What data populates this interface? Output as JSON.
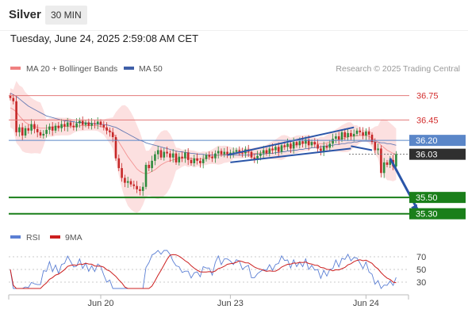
{
  "header": {
    "title": "Silver",
    "interval": "30 MIN"
  },
  "timestamp": "Tuesday, June 24, 2025 2:59:08 AM CET",
  "legend": {
    "bollinger_label": "MA 20 + Bollinger Bands",
    "ma50_label": "MA 50",
    "copyright": "Research © 2025 Trading Central",
    "rsi_label": "RSI",
    "rsi_ma_label": "9MA"
  },
  "colors": {
    "bollinger": "#f08080",
    "band_fill": "#fbdada",
    "ma50": "#3f5fa8",
    "up": "#2e8b3e",
    "down": "#c62828",
    "support": "#1a7f1a",
    "resistance": "#e37a7a",
    "pivot": "#5a86c8",
    "last": "#2f2f2f",
    "channel": "#2a55a8",
    "rsi": "#5b7fd4",
    "rsi_ma": "#cc1f1f"
  },
  "chart_data": {
    "type": "candlestick",
    "y_range": [
      35.2,
      36.95
    ],
    "x_ticks": [
      {
        "label": "Jun 20",
        "index": 30
      },
      {
        "label": "Jun 23",
        "index": 73
      },
      {
        "label": "Jun 24",
        "index": 118
      }
    ],
    "levels": [
      {
        "label": "36.75",
        "value": 36.75,
        "kind": "resistance"
      },
      {
        "label": "36.45",
        "value": 36.45,
        "kind": "resistance"
      },
      {
        "label": "36.20",
        "value": 36.2,
        "kind": "pivot"
      },
      {
        "label": "36.03",
        "value": 36.03,
        "kind": "last"
      },
      {
        "label": "35.50",
        "value": 35.5,
        "kind": "support"
      },
      {
        "label": "35.30",
        "value": 35.3,
        "kind": "support"
      }
    ],
    "close": [
      36.72,
      36.68,
      36.3,
      36.36,
      36.26,
      36.35,
      36.32,
      36.4,
      36.34,
      36.3,
      36.26,
      36.28,
      36.33,
      36.37,
      36.32,
      36.38,
      36.35,
      36.4,
      36.37,
      36.42,
      36.38,
      36.36,
      36.41,
      36.44,
      36.39,
      36.42,
      36.38,
      36.41,
      36.4,
      36.43,
      36.39,
      36.36,
      36.32,
      36.3,
      36.24,
      35.98,
      35.86,
      35.74,
      35.68,
      35.7,
      35.66,
      35.64,
      35.6,
      35.58,
      35.63,
      35.9,
      35.86,
      35.95,
      36.03,
      36.08,
      35.99,
      36.06,
      36.04,
      35.99,
      36.04,
      35.93,
      36.0,
      35.98,
      36.05,
      35.96,
      35.92,
      35.98,
      35.95,
      35.92,
      35.97,
      36.02,
      36.0,
      35.98,
      36.04,
      36.07,
      36.03,
      36.06,
      36.03,
      36.05,
      36.06,
      36.08,
      36.05,
      36.04,
      36.09,
      36.06,
      35.99,
      35.96,
      36.01,
      36.04,
      36.08,
      36.04,
      36.1,
      36.08,
      36.12,
      36.06,
      36.14,
      36.12,
      36.16,
      36.1,
      36.18,
      36.14,
      36.19,
      36.16,
      36.21,
      36.14,
      36.18,
      36.15,
      36.1,
      36.07,
      36.13,
      36.11,
      36.16,
      36.22,
      36.25,
      36.21,
      36.3,
      36.24,
      36.29,
      36.25,
      36.28,
      36.32,
      36.3,
      36.26,
      36.31,
      36.27,
      36.18,
      36.08,
      36.1,
      35.8,
      35.93,
      35.9,
      35.96,
      35.88,
      36.03
    ],
    "ma20": [
      36.6,
      36.58,
      36.55,
      36.5,
      36.46,
      36.42,
      36.4,
      36.38,
      36.37,
      36.36,
      36.35,
      36.35,
      36.35,
      36.36,
      36.36,
      36.37,
      36.37,
      36.37,
      36.37,
      36.37,
      36.37,
      36.37,
      36.37,
      36.38,
      36.38,
      36.38,
      36.38,
      36.38,
      36.38,
      36.38,
      36.37,
      36.36,
      36.34,
      36.32,
      36.29,
      36.24,
      36.18,
      36.12,
      36.06,
      36.0,
      35.95,
      35.9,
      35.85,
      35.82,
      35.8,
      35.79,
      35.8,
      35.82,
      35.84,
      35.87,
      35.9,
      35.92,
      35.94,
      35.95,
      35.96,
      35.97,
      35.98,
      35.98,
      35.99,
      35.98,
      35.98,
      35.97,
      35.97,
      35.97,
      35.98,
      35.98,
      35.99,
      36.0,
      36.01,
      36.02,
      36.02,
      36.03,
      36.03,
      36.03,
      36.04,
      36.04,
      36.04,
      36.04,
      36.05,
      36.05,
      36.04,
      36.04,
      36.04,
      36.05,
      36.05,
      36.06,
      36.07,
      36.08,
      36.09,
      36.1,
      36.11,
      36.12,
      36.13,
      36.13,
      36.14,
      36.15,
      36.16,
      36.16,
      36.17,
      36.17,
      36.17,
      36.17,
      36.16,
      36.16,
      36.16,
      36.17,
      36.18,
      36.19,
      36.2,
      36.21,
      36.22,
      36.23,
      36.24,
      36.25,
      36.25,
      36.26,
      36.26,
      36.26,
      36.26,
      36.25,
      36.23,
      36.2,
      36.18,
      36.14,
      36.11,
      36.08,
      36.06,
      36.04,
      36.03
    ],
    "ma50": [
      36.78,
      36.76,
      36.74,
      36.71,
      36.68,
      36.65,
      36.62,
      36.6,
      36.58,
      36.56,
      36.54,
      36.52,
      36.5,
      36.49,
      36.48,
      36.47,
      36.46,
      36.45,
      36.44,
      36.44,
      36.43,
      36.43,
      36.42,
      36.42,
      36.42,
      36.41,
      36.41,
      36.41,
      36.4,
      36.4,
      36.4,
      36.39,
      36.39,
      36.38,
      36.37,
      36.36,
      36.34,
      36.32,
      36.3,
      36.28,
      36.26,
      36.24,
      36.22,
      36.2,
      36.19,
      36.17,
      36.16,
      36.15,
      36.14,
      36.13,
      36.12,
      36.11,
      36.1,
      36.09,
      36.08,
      36.07,
      36.06,
      36.06,
      36.05,
      36.05,
      36.04,
      36.04,
      36.03,
      36.03,
      36.03,
      36.02,
      36.02,
      36.02,
      36.02,
      36.02,
      36.02,
      36.02,
      36.02,
      36.02,
      36.02,
      36.02,
      36.02,
      36.02,
      36.02,
      36.02,
      36.02,
      36.03,
      36.03,
      36.03,
      36.03,
      36.04,
      36.04,
      36.04,
      36.05,
      36.05,
      36.06,
      36.06,
      36.07,
      36.07,
      36.08,
      36.08,
      36.09,
      36.09,
      36.1,
      36.1,
      36.11,
      36.11,
      36.12,
      36.12,
      36.13,
      36.13,
      36.14,
      36.14,
      36.15,
      36.15,
      36.16,
      36.16,
      36.17,
      36.17,
      36.18,
      36.18,
      36.19,
      36.19,
      36.19,
      36.19,
      36.19,
      36.18,
      36.18,
      36.17,
      36.17,
      36.16,
      36.16,
      36.15,
      36.14
    ],
    "rsi": {
      "y_ticks": [
        30,
        50,
        70
      ],
      "y_range": [
        20,
        80
      ]
    },
    "channel": {
      "lower": [
        [
          73,
          35.93
        ],
        [
          113,
          36.1
        ]
      ],
      "upper": [
        [
          72,
          36.02
        ],
        [
          114,
          36.36
        ]
      ]
    },
    "pivot_line": [
      [
        113,
        36.13
      ],
      [
        120,
        36.08
      ]
    ],
    "forecast_arrow": [
      [
        126,
        35.98
      ],
      [
        135,
        35.32
      ]
    ]
  }
}
